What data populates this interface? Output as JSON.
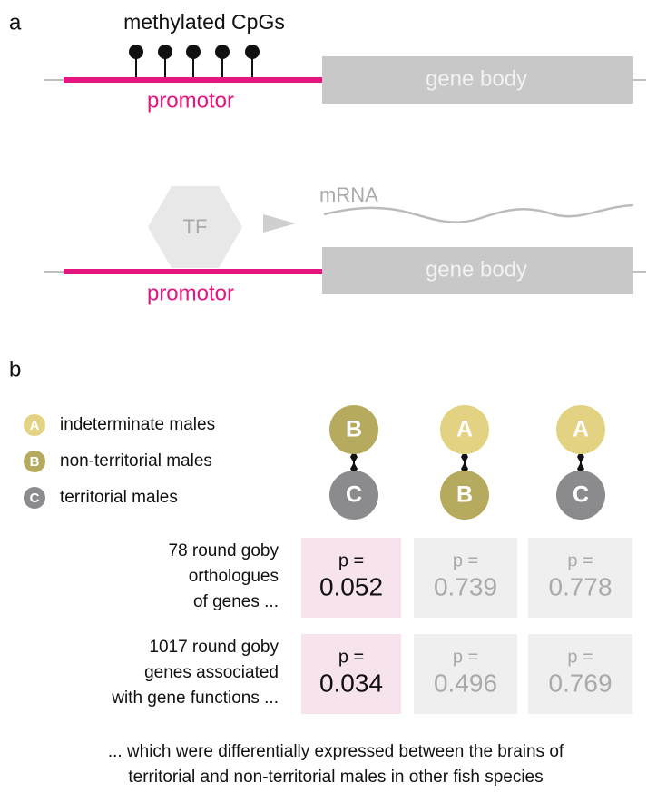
{
  "panel_a": {
    "label": "a",
    "top": {
      "methylation_label": "methylated CpGs",
      "gene_body": "gene body",
      "promoter": "promotor"
    },
    "bottom": {
      "tf": "TF",
      "mrna": "mRNA",
      "gene_body": "gene body",
      "promoter": "promotor"
    }
  },
  "panel_b": {
    "label": "b",
    "legend": [
      {
        "letter": "A",
        "label": "indeterminate males",
        "color": "#e2d282"
      },
      {
        "letter": "B",
        "label": "non-territorial males",
        "color": "#b5aa5d"
      },
      {
        "letter": "C",
        "label": "territorial males",
        "color": "#8b8b8e"
      }
    ],
    "comparisons": [
      [
        "B",
        "C"
      ],
      [
        "A",
        "B"
      ],
      [
        "A",
        "C"
      ]
    ],
    "rows": [
      {
        "description": [
          "78 round goby",
          "orthologues",
          "of genes ..."
        ],
        "cells": [
          {
            "label": "p =",
            "value": 0.052
          },
          {
            "label": "p =",
            "value": 0.739
          },
          {
            "label": "p =",
            "value": 0.778
          }
        ]
      },
      {
        "description": [
          "1017 round goby",
          "genes associated",
          "with gene functions ..."
        ],
        "cells": [
          {
            "label": "p =",
            "value": 0.034
          },
          {
            "label": "p =",
            "value": 0.496
          },
          {
            "label": "p =",
            "value": 0.769
          }
        ]
      }
    ],
    "footer": [
      "... which were differentially expressed between the brains of",
      "territorial and non-territorial males in other fish species"
    ]
  }
}
